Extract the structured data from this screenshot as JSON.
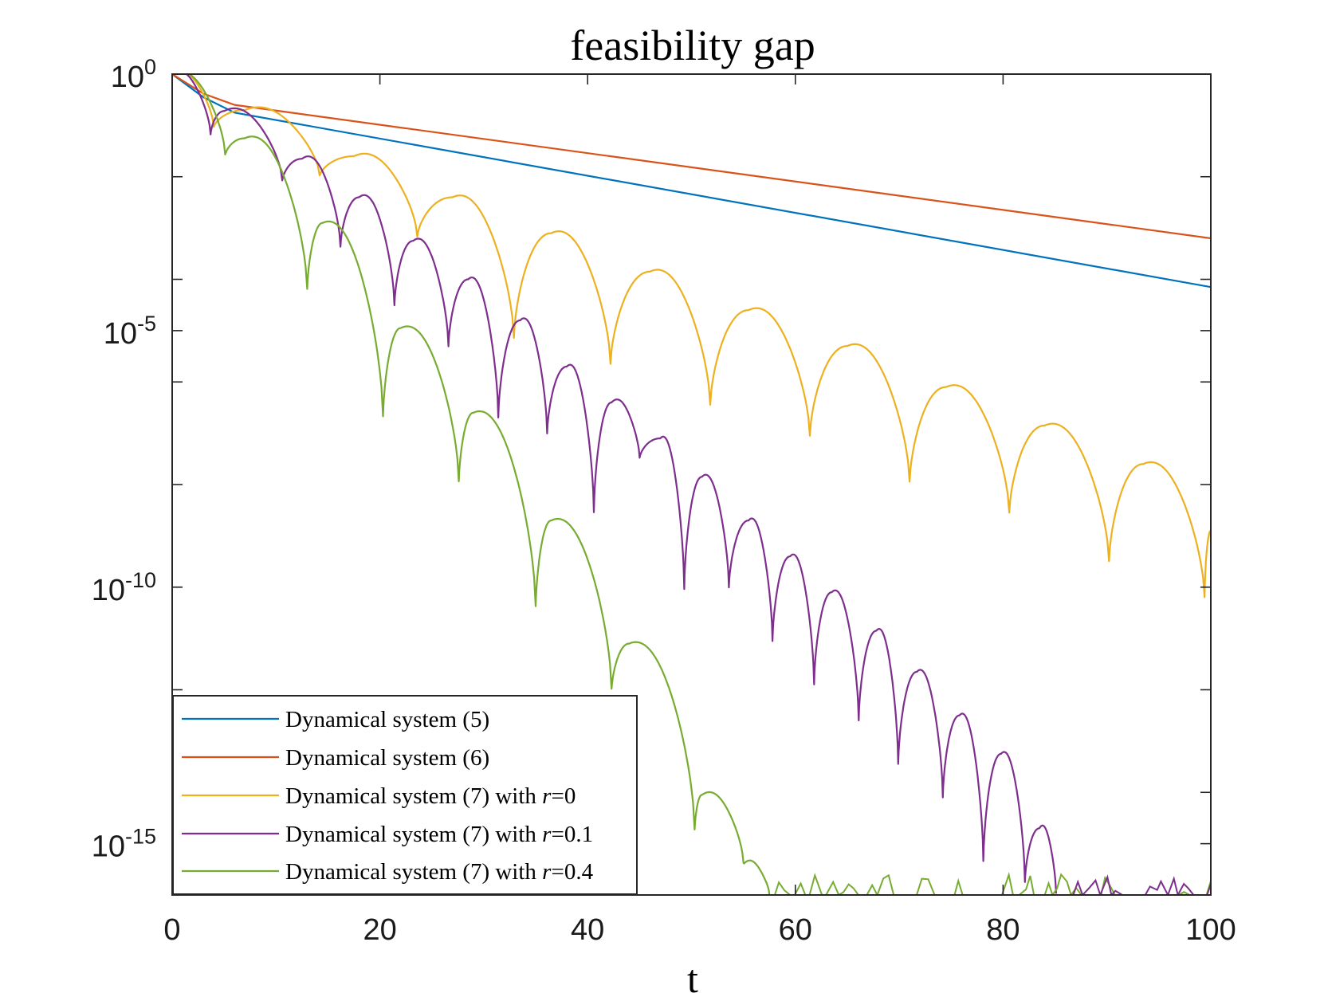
{
  "chart_data": {
    "type": "line",
    "title": "feasibility gap",
    "xlabel": "t",
    "ylabel": "",
    "xlim": [
      0,
      100
    ],
    "ylim_log10": [
      -16,
      0
    ],
    "yscale": "log",
    "grid": false,
    "legend_position": "bottom-left",
    "x_ticks": [
      {
        "value": 0,
        "label": "0"
      },
      {
        "value": 20,
        "label": "20"
      },
      {
        "value": 40,
        "label": "40"
      },
      {
        "value": 60,
        "label": "60"
      },
      {
        "value": 80,
        "label": "80"
      },
      {
        "value": 100,
        "label": "100"
      }
    ],
    "y_ticks": [
      {
        "exp": 0,
        "base": "10",
        "sup": "0"
      },
      {
        "exp": -5,
        "base": "10",
        "sup": "-5"
      },
      {
        "exp": -10,
        "base": "10",
        "sup": "-10"
      },
      {
        "exp": -15,
        "base": "10",
        "sup": "-15"
      }
    ],
    "series": [
      {
        "name": "Dynamical system (5)",
        "legend_parts": [
          "Dynamical system (5)"
        ],
        "color": "#0072BD",
        "kind": "linear",
        "points": [
          [
            0,
            0
          ],
          [
            3,
            -0.45
          ],
          [
            6,
            -0.75
          ],
          [
            100,
            -4.15
          ]
        ]
      },
      {
        "name": "Dynamical system (6)",
        "legend_parts": [
          "Dynamical system (6)"
        ],
        "color": "#D95319",
        "kind": "linear",
        "points": [
          [
            0,
            0
          ],
          [
            3,
            -0.38
          ],
          [
            6,
            -0.6
          ],
          [
            100,
            -3.2
          ]
        ]
      },
      {
        "name": "Dynamical system (7) with r=0",
        "legend_parts": [
          "Dynamical system (7) with ",
          "r",
          "=0"
        ],
        "color": "#EDB120",
        "kind": "oscillating",
        "points": [
          [
            0,
            0
          ],
          [
            4,
            -1.05
          ],
          [
            7,
            -0.7
          ],
          [
            14.2,
            -2
          ],
          [
            17.5,
            -1.6
          ],
          [
            23.6,
            -3.2
          ],
          [
            27,
            -2.4
          ],
          [
            32.9,
            -5.2
          ],
          [
            36.5,
            -3.1
          ],
          [
            42.2,
            -5.7
          ],
          [
            46,
            -3.85
          ],
          [
            51.8,
            -6.5
          ],
          [
            55.5,
            -4.6
          ],
          [
            61.4,
            -7.1
          ],
          [
            65,
            -5.3
          ],
          [
            71,
            -8
          ],
          [
            74.5,
            -6.1
          ],
          [
            80.6,
            -8.6
          ],
          [
            84,
            -6.85
          ],
          [
            90.2,
            -9.55
          ],
          [
            93.5,
            -7.6
          ],
          [
            99.4,
            -10.25
          ],
          [
            100,
            -8.9
          ]
        ]
      },
      {
        "name": "Dynamical system (7) with r=0.1",
        "legend_parts": [
          "Dynamical system (7) with ",
          "r",
          "=0.1"
        ],
        "color": "#7E2F8E",
        "kind": "oscillating",
        "points": [
          [
            0,
            0
          ],
          [
            3.7,
            -1.2
          ],
          [
            5,
            -0.72
          ],
          [
            10.6,
            -2.1
          ],
          [
            12.5,
            -1.65
          ],
          [
            16.2,
            -3.4
          ],
          [
            18,
            -2.4
          ],
          [
            21.4,
            -4.55
          ],
          [
            23.2,
            -3.25
          ],
          [
            26.6,
            -5.35
          ],
          [
            28.5,
            -4
          ],
          [
            31.4,
            -6.75
          ],
          [
            33.5,
            -4.8
          ],
          [
            36.1,
            -7.05
          ],
          [
            38,
            -5.7
          ],
          [
            40.6,
            -8.6
          ],
          [
            42.3,
            -6.4
          ],
          [
            45,
            -7.5
          ],
          [
            47,
            -7.1
          ],
          [
            49.3,
            -10.1
          ],
          [
            51,
            -7.85
          ],
          [
            53.6,
            -10.05
          ],
          [
            55.5,
            -8.7
          ],
          [
            57.8,
            -11.1
          ],
          [
            59.5,
            -9.4
          ],
          [
            61.8,
            -11.95
          ],
          [
            63.5,
            -10.1
          ],
          [
            66.1,
            -12.65
          ],
          [
            67.8,
            -10.85
          ],
          [
            69.9,
            -13.5
          ],
          [
            71.7,
            -11.65
          ],
          [
            74.2,
            -14.15
          ],
          [
            75.8,
            -12.5
          ],
          [
            78.1,
            -15.4
          ],
          [
            79.8,
            -13.25
          ],
          [
            82.1,
            -15.8
          ],
          [
            83.5,
            -14.7
          ],
          [
            85.1,
            -16
          ]
        ]
      },
      {
        "name": "Dynamical system (7) with r=0.4",
        "legend_parts": [
          "Dynamical system (7) with ",
          "r",
          "=0.4"
        ],
        "color": "#77AC30",
        "kind": "oscillating",
        "points": [
          [
            0,
            0
          ],
          [
            5.1,
            -1.6
          ],
          [
            7,
            -1.25
          ],
          [
            13,
            -4.25
          ],
          [
            14.5,
            -2.9
          ],
          [
            20.3,
            -6.75
          ],
          [
            22,
            -4.95
          ],
          [
            27.6,
            -8
          ],
          [
            29,
            -6.6
          ],
          [
            35,
            -10.45
          ],
          [
            36.5,
            -8.7
          ],
          [
            42.3,
            -12.05
          ],
          [
            44,
            -11.1
          ],
          [
            50.3,
            -14.8
          ],
          [
            51,
            -14.05
          ],
          [
            55,
            -15.4
          ],
          [
            57.5,
            -16
          ]
        ]
      }
    ]
  }
}
